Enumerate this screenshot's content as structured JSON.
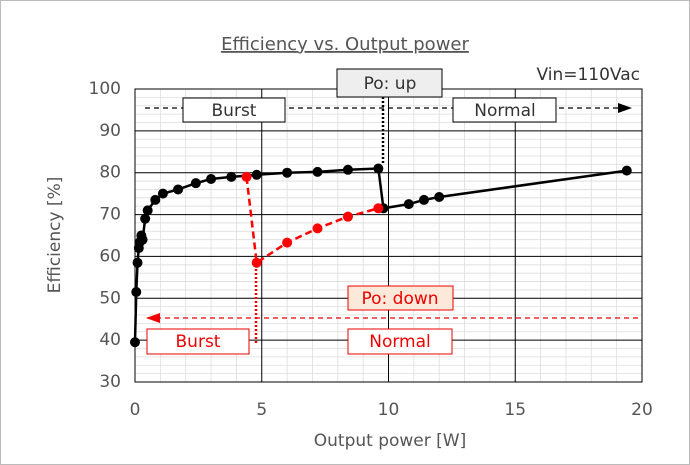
{
  "chart_data": {
    "type": "line",
    "title": "Efficiency vs. Output power",
    "x_label": "Output power [W]",
    "y_label": "Efficiency [%]",
    "xlim": [
      0,
      20
    ],
    "xticks": [
      0,
      5,
      10,
      15,
      20
    ],
    "ylim": [
      30,
      100
    ],
    "yticks": [
      30,
      40,
      50,
      60,
      70,
      80,
      90,
      100
    ],
    "grid": true,
    "series": [
      {
        "name": "Po: up",
        "color": "#000000",
        "dash": false,
        "x": [
          0,
          0.05,
          0.1,
          0.15,
          0.2,
          0.25,
          0.3,
          0.4,
          0.5,
          0.8,
          1.1,
          1.7,
          2.4,
          3,
          3.8,
          4.8,
          6,
          7.2,
          8.4,
          9.6,
          9.8,
          10.8,
          11.4,
          12,
          19.4
        ],
        "values": [
          39.5,
          51.5,
          58.5,
          62,
          63.5,
          65,
          64,
          69,
          71,
          73.5,
          75,
          76,
          77.5,
          78.5,
          79,
          79.5,
          80,
          80.2,
          80.7,
          81,
          71.5,
          72.5,
          73.5,
          74.2,
          80.5
        ]
      },
      {
        "name": "Po: down",
        "color": "#ff0000",
        "dash": true,
        "x": [
          4.4,
          4.8,
          6,
          7.2,
          8.4,
          9.6
        ],
        "values": [
          79,
          58.5,
          63.3,
          66.7,
          69.5,
          71.5
        ]
      }
    ],
    "annotations": [
      "Vin=110Vac",
      "Burst",
      "Normal",
      "Burst",
      "Normal"
    ]
  }
}
